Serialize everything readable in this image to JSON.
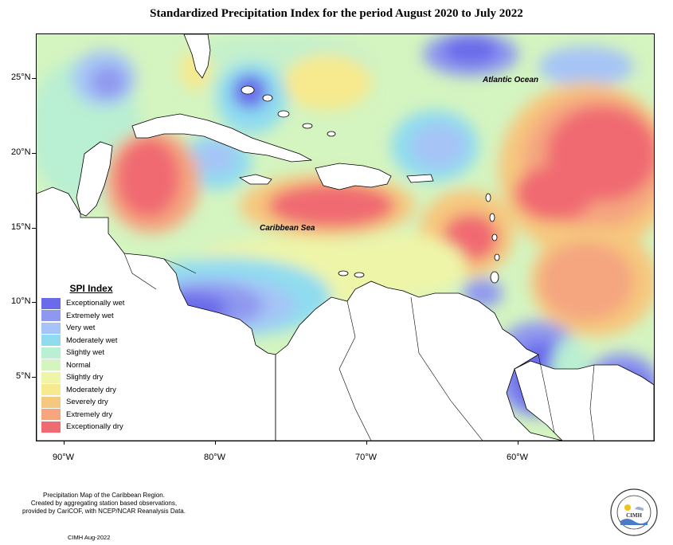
{
  "title": "Standardized Precipitation Index for the period August 2020 to July 2022",
  "map": {
    "labels": {
      "ocean": "Atlantic Ocean",
      "sea": "Caribbean Sea"
    },
    "lat_labels": [
      "25°N",
      "20°N",
      "15°N",
      "10°N",
      "5°N"
    ],
    "lon_labels": [
      "90°W",
      "80°W",
      "70°W",
      "60°W"
    ]
  },
  "legend": {
    "title": "SPI Index",
    "items": [
      {
        "label": "Exceptionally wet",
        "color": "#6b6bea"
      },
      {
        "label": "Extremely wet",
        "color": "#8f98ef"
      },
      {
        "label": "Very wet",
        "color": "#a6c4f6"
      },
      {
        "label": "Moderately wet",
        "color": "#8fdcf0"
      },
      {
        "label": "Slightly wet",
        "color": "#b9efd2"
      },
      {
        "label": "Normal",
        "color": "#d4f4c0"
      },
      {
        "label": "Slightly dry",
        "color": "#eef5a9"
      },
      {
        "label": "Moderately dry",
        "color": "#f7e98d"
      },
      {
        "label": "Severely dry",
        "color": "#f6c77e"
      },
      {
        "label": "Extremely dry",
        "color": "#f5a67f"
      },
      {
        "label": "Exceptionally dry",
        "color": "#f06a72"
      }
    ]
  },
  "footnote": {
    "line1": "Precipitation Map of the Caribbean Region.",
    "line2": "Created by aggregating station based observations,",
    "line3": "provided by CariCOF, with NCEP/NCAR Reanalysis Data."
  },
  "credit": "CIMH Aug-2022",
  "logo": {
    "text": "CIMH"
  }
}
